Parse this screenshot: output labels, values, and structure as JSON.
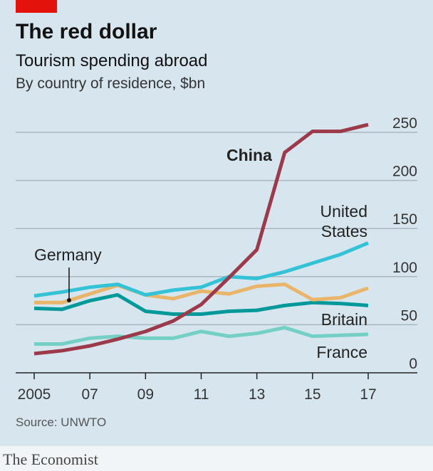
{
  "chart_data": {
    "type": "line",
    "title": "The red dollar",
    "subtitle": "Tourism spending abroad",
    "ylabel": "By country of residence, $bn",
    "x": [
      2005,
      2006,
      2007,
      2008,
      2009,
      2010,
      2011,
      2012,
      2013,
      2014,
      2015,
      2016,
      2017
    ],
    "xtick_labels": [
      "2005",
      "07",
      "09",
      "11",
      "13",
      "15",
      "17"
    ],
    "xtick_values": [
      2005,
      2007,
      2009,
      2011,
      2013,
      2015,
      2017
    ],
    "yticks": [
      0,
      50,
      100,
      150,
      200,
      250
    ],
    "ylim": [
      0,
      250
    ],
    "grid": true,
    "series": [
      {
        "name": "China",
        "color": "#9c3a4c",
        "values": [
          20,
          23,
          28,
          35,
          43,
          54,
          71,
          99,
          128,
          229,
          251,
          251,
          258
        ]
      },
      {
        "name": "United States",
        "color": "#33c2d6",
        "values": [
          80,
          84,
          89,
          92,
          81,
          86,
          89,
          100,
          98,
          105,
          114,
          123,
          135
        ]
      },
      {
        "name": "Germany",
        "color": "#e8b56a",
        "values": [
          73,
          73,
          82,
          91,
          81,
          77,
          85,
          82,
          90,
          92,
          76,
          78,
          88
        ]
      },
      {
        "name": "Britain",
        "color": "#00999a",
        "values": [
          67,
          66,
          75,
          81,
          64,
          61,
          61,
          64,
          65,
          70,
          73,
          72,
          70
        ]
      },
      {
        "name": "France",
        "color": "#74cfc5",
        "values": [
          30,
          30,
          36,
          38,
          36,
          36,
          43,
          38,
          41,
          47,
          38,
          39,
          40
        ]
      }
    ],
    "labels": {
      "China": "China",
      "us1": "United",
      "us2": "States",
      "Germany": "Germany",
      "Britain": "Britain",
      "France": "France"
    },
    "source": "Source: UNWTO"
  },
  "brand": "The Economist",
  "colors": {
    "background": "#d7e6ee",
    "accent": "#e3120b"
  }
}
